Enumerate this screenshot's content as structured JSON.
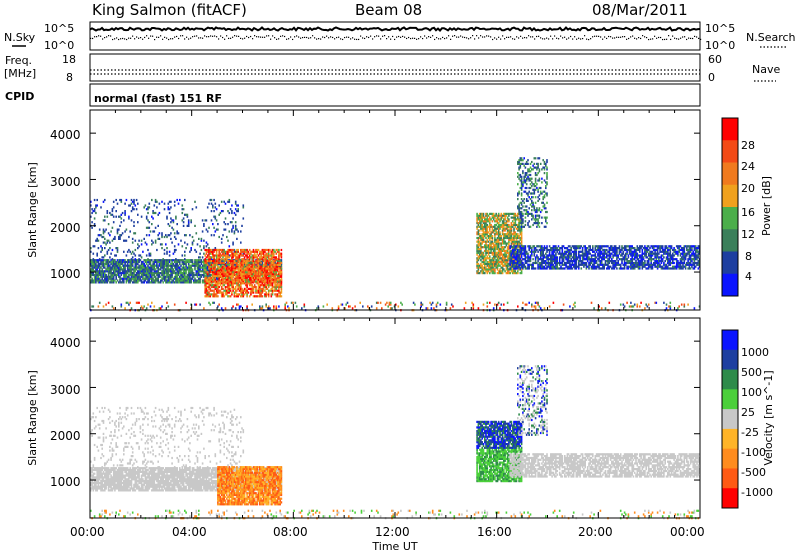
{
  "header": {
    "station": "King Salmon (fitACF)",
    "beam": "Beam 08",
    "date": "08/Mar/2011"
  },
  "top_panel": {
    "nsky_label": "N.Sky",
    "nsearch_label": "N.Search",
    "freq_label_top": "Freq.",
    "freq_label_unit": "[MHz]",
    "nave_label": "Nave",
    "cpid_label": "CPID",
    "cpid_text": "normal (fast) 151 RF",
    "noise_ticks_left": [
      "10^5",
      "10^0"
    ],
    "noise_ticks_right": [
      "10^5",
      "10^0"
    ],
    "freq_ticks": [
      "18",
      "8"
    ],
    "nave_ticks": [
      "60",
      "0"
    ]
  },
  "colors": {
    "power_scale": [
      "#0a14ff",
      "#1e3fa0",
      "#3a7f5a",
      "#4bae4a",
      "#f0a11e",
      "#f07a1e",
      "#f34a16",
      "#ff0000"
    ],
    "velocity_scale": [
      "#ff0000",
      "#ff5a14",
      "#ff8c1e",
      "#ffb428",
      "#c8c8c8",
      "#4bd03a",
      "#2e8b4a",
      "#1e3fa0",
      "#0a14ff"
    ]
  },
  "chart_data": [
    {
      "type": "heatmap",
      "panel": "power",
      "ylabel": "Slant Range [km]",
      "xlabel": "Time UT",
      "ylim": [
        180,
        4500
      ],
      "xlim_hours": [
        0,
        24
      ],
      "yticks": [
        "4000",
        "3000",
        "2000",
        "1000"
      ],
      "colorbar_label": "Power [dB]",
      "colorbar_ticks": [
        "28",
        "24",
        "20",
        "16",
        "12",
        "8",
        "4"
      ],
      "colorbar_range": [
        0,
        30
      ]
    },
    {
      "type": "heatmap",
      "panel": "velocity",
      "ylabel": "Slant Range [km]",
      "xlabel": "Time UT",
      "ylim": [
        180,
        4500
      ],
      "xlim_hours": [
        0,
        24
      ],
      "yticks": [
        "4000",
        "3000",
        "2000",
        "1000"
      ],
      "colorbar_label": "Velocity [m s^-1]",
      "colorbar_ticks": [
        "1000",
        "500",
        "100",
        "25",
        "-25",
        "-100",
        "-500",
        "-1000"
      ]
    }
  ],
  "time_axis": {
    "ticks": [
      "00:00",
      "04:00",
      "08:00",
      "12:00",
      "16:00",
      "20:00",
      "00:00"
    ],
    "label": "Time UT"
  }
}
